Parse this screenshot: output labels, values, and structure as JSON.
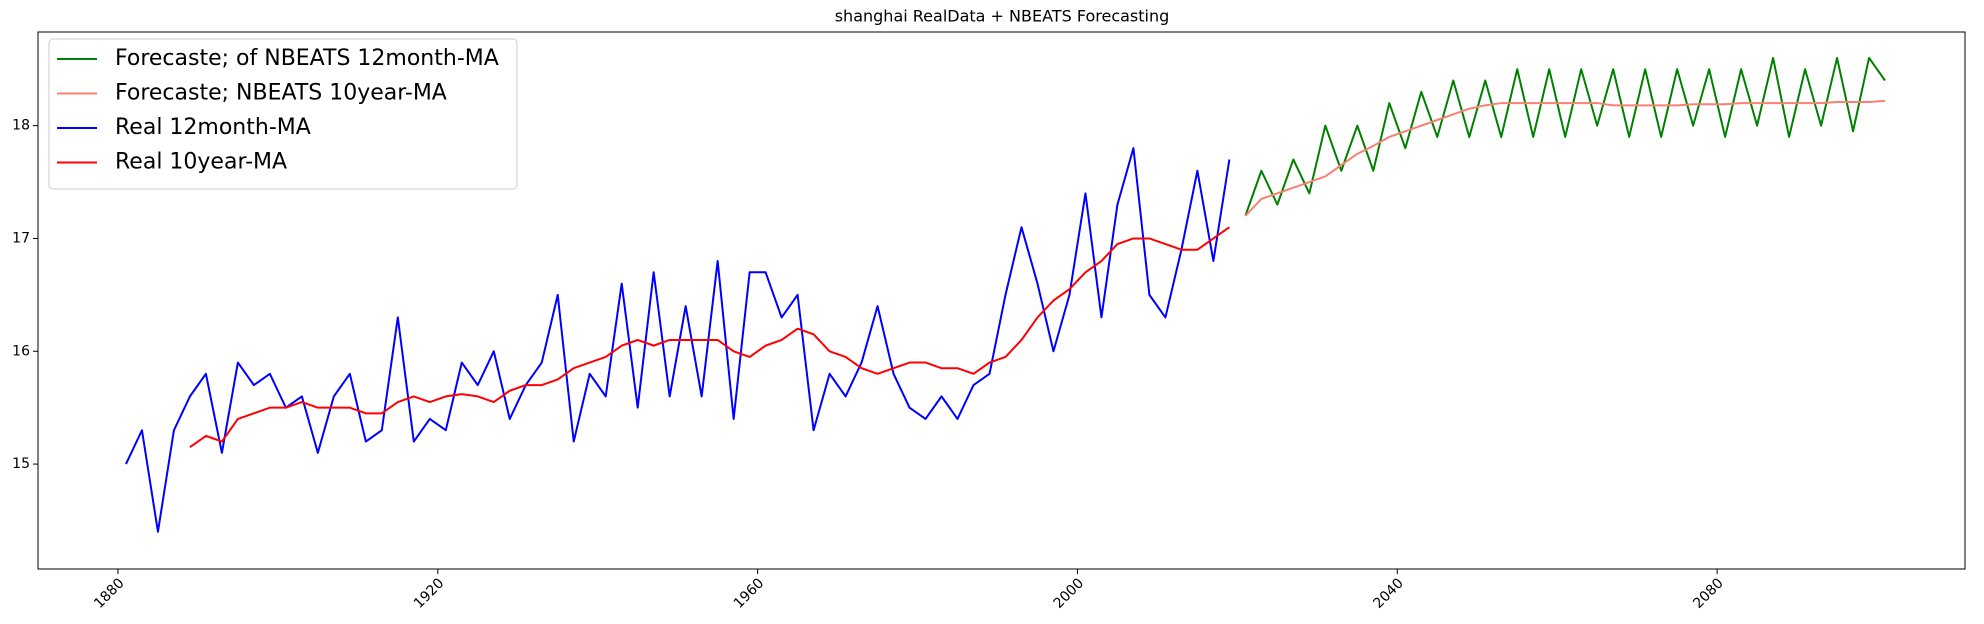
{
  "chart_data": {
    "type": "line",
    "title": "shanghai RealData + NBEATS Forecasting",
    "x": [
      1881,
      1883,
      1885,
      1887,
      1889,
      1891,
      1893,
      1895,
      1897,
      1899,
      1901,
      1903,
      1905,
      1907,
      1909,
      1911,
      1913,
      1915,
      1917,
      1919,
      1921,
      1923,
      1925,
      1927,
      1929,
      1931,
      1933,
      1935,
      1937,
      1939,
      1941,
      1943,
      1945,
      1947,
      1949,
      1951,
      1953,
      1955,
      1957,
      1959,
      1961,
      1963,
      1965,
      1967,
      1969,
      1971,
      1973,
      1975,
      1977,
      1979,
      1981,
      1983,
      1985,
      1987,
      1989,
      1991,
      1993,
      1995,
      1997,
      1999,
      2001,
      2003,
      2005,
      2007,
      2009,
      2011,
      2013,
      2015,
      2017,
      2019,
      2021,
      2023,
      2025,
      2027,
      2029,
      2031,
      2033,
      2035,
      2037,
      2039,
      2041,
      2043,
      2045,
      2047,
      2049,
      2051,
      2053,
      2055,
      2057,
      2059,
      2061,
      2063,
      2065,
      2067,
      2069,
      2071,
      2073,
      2075,
      2077,
      2079,
      2081,
      2083,
      2085,
      2087,
      2089,
      2091,
      2093,
      2095,
      2097,
      2099,
      2101
    ],
    "series": [
      {
        "name": "Forecaste; of NBEATS 12month-MA",
        "color": "#008000",
        "values": [
          null,
          null,
          null,
          null,
          null,
          null,
          null,
          null,
          null,
          null,
          null,
          null,
          null,
          null,
          null,
          null,
          null,
          null,
          null,
          null,
          null,
          null,
          null,
          null,
          null,
          null,
          null,
          null,
          null,
          null,
          null,
          null,
          null,
          null,
          null,
          null,
          null,
          null,
          null,
          null,
          null,
          null,
          null,
          null,
          null,
          null,
          null,
          null,
          null,
          null,
          null,
          null,
          null,
          null,
          null,
          null,
          null,
          null,
          null,
          null,
          null,
          null,
          null,
          null,
          null,
          null,
          null,
          null,
          null,
          null,
          17.2,
          17.6,
          17.3,
          17.7,
          17.4,
          18.0,
          17.6,
          18.0,
          17.6,
          18.2,
          17.8,
          18.3,
          17.9,
          18.4,
          17.9,
          18.4,
          17.9,
          18.5,
          17.9,
          18.5,
          17.9,
          18.5,
          18.0,
          18.5,
          17.9,
          18.5,
          17.9,
          18.5,
          18.0,
          18.5,
          17.9,
          18.5,
          18.0,
          18.6,
          17.9,
          18.5,
          18.0,
          18.6,
          17.95,
          18.6,
          18.4
        ]
      },
      {
        "name": "Forecaste; NBEATS 10year-MA",
        "color": "#fa8072",
        "values": [
          null,
          null,
          null,
          null,
          null,
          null,
          null,
          null,
          null,
          null,
          null,
          null,
          null,
          null,
          null,
          null,
          null,
          null,
          null,
          null,
          null,
          null,
          null,
          null,
          null,
          null,
          null,
          null,
          null,
          null,
          null,
          null,
          null,
          null,
          null,
          null,
          null,
          null,
          null,
          null,
          null,
          null,
          null,
          null,
          null,
          null,
          null,
          null,
          null,
          null,
          null,
          null,
          null,
          null,
          null,
          null,
          null,
          null,
          null,
          null,
          null,
          null,
          null,
          null,
          null,
          null,
          null,
          null,
          null,
          null,
          17.2,
          17.35,
          17.4,
          17.45,
          17.5,
          17.55,
          17.65,
          17.75,
          17.82,
          17.9,
          17.95,
          18.0,
          18.05,
          18.1,
          18.15,
          18.18,
          18.2,
          18.2,
          18.2,
          18.2,
          18.2,
          18.2,
          18.2,
          18.18,
          18.18,
          18.18,
          18.18,
          18.18,
          18.19,
          18.19,
          18.19,
          18.2,
          18.2,
          18.2,
          18.2,
          18.2,
          18.2,
          18.21,
          18.21,
          18.21,
          18.22
        ]
      },
      {
        "name": "Real 12month-MA",
        "color": "#0000ff",
        "values": [
          15.0,
          15.3,
          14.4,
          15.3,
          15.6,
          15.8,
          15.1,
          15.9,
          15.7,
          15.8,
          15.5,
          15.6,
          15.1,
          15.6,
          15.8,
          15.2,
          15.3,
          16.3,
          15.2,
          15.4,
          15.3,
          15.9,
          15.7,
          16.0,
          15.4,
          15.7,
          15.9,
          16.5,
          15.2,
          15.8,
          15.6,
          16.6,
          15.5,
          16.7,
          15.6,
          16.4,
          15.6,
          16.8,
          15.4,
          16.7,
          16.7,
          16.3,
          16.5,
          15.3,
          15.8,
          15.6,
          15.9,
          16.4,
          15.8,
          15.5,
          15.4,
          15.6,
          15.4,
          15.7,
          15.8,
          16.5,
          17.1,
          16.6,
          16.0,
          16.5,
          17.4,
          16.3,
          17.3,
          17.8,
          16.5,
          16.3,
          16.9,
          17.6,
          16.8,
          17.7,
          null,
          null,
          null,
          null,
          null,
          null,
          null,
          null,
          null,
          null,
          null,
          null,
          null,
          null,
          null,
          null,
          null,
          null,
          null,
          null,
          null,
          null,
          null,
          null,
          null,
          null,
          null,
          null,
          null,
          null,
          null,
          null,
          null,
          null,
          null,
          null,
          null,
          null,
          null,
          null,
          null
        ]
      },
      {
        "name": "Real 10year-MA",
        "color": "#ff0000",
        "values": [
          null,
          null,
          null,
          null,
          15.15,
          15.25,
          15.2,
          15.4,
          15.45,
          15.5,
          15.5,
          15.55,
          15.5,
          15.5,
          15.5,
          15.45,
          15.45,
          15.55,
          15.6,
          15.55,
          15.6,
          15.62,
          15.6,
          15.55,
          15.65,
          15.7,
          15.7,
          15.75,
          15.85,
          15.9,
          15.95,
          16.05,
          16.1,
          16.05,
          16.1,
          16.1,
          16.1,
          16.1,
          16.0,
          15.95,
          16.05,
          16.1,
          16.2,
          16.15,
          16.0,
          15.95,
          15.85,
          15.8,
          15.85,
          15.9,
          15.9,
          15.85,
          15.85,
          15.8,
          15.9,
          15.95,
          16.1,
          16.3,
          16.45,
          16.55,
          16.7,
          16.8,
          16.95,
          17.0,
          17.0,
          16.95,
          16.9,
          16.9,
          17.0,
          17.1,
          null,
          null,
          null,
          null,
          null,
          null,
          null,
          null,
          null,
          null,
          null,
          null,
          null,
          null,
          null,
          null,
          null,
          null,
          null,
          null,
          null,
          null,
          null,
          null,
          null,
          null,
          null,
          null,
          null,
          null,
          null,
          null,
          null,
          null,
          null,
          null,
          null,
          null,
          null,
          null,
          null
        ]
      }
    ],
    "xlim": [
      1870,
      2111
    ],
    "xticks": [
      1880,
      1920,
      1960,
      2000,
      2040,
      2080
    ],
    "ylim": [
      14.07,
      18.83
    ],
    "yticks": [
      15,
      16,
      17,
      18
    ],
    "legend": "upper left"
  }
}
